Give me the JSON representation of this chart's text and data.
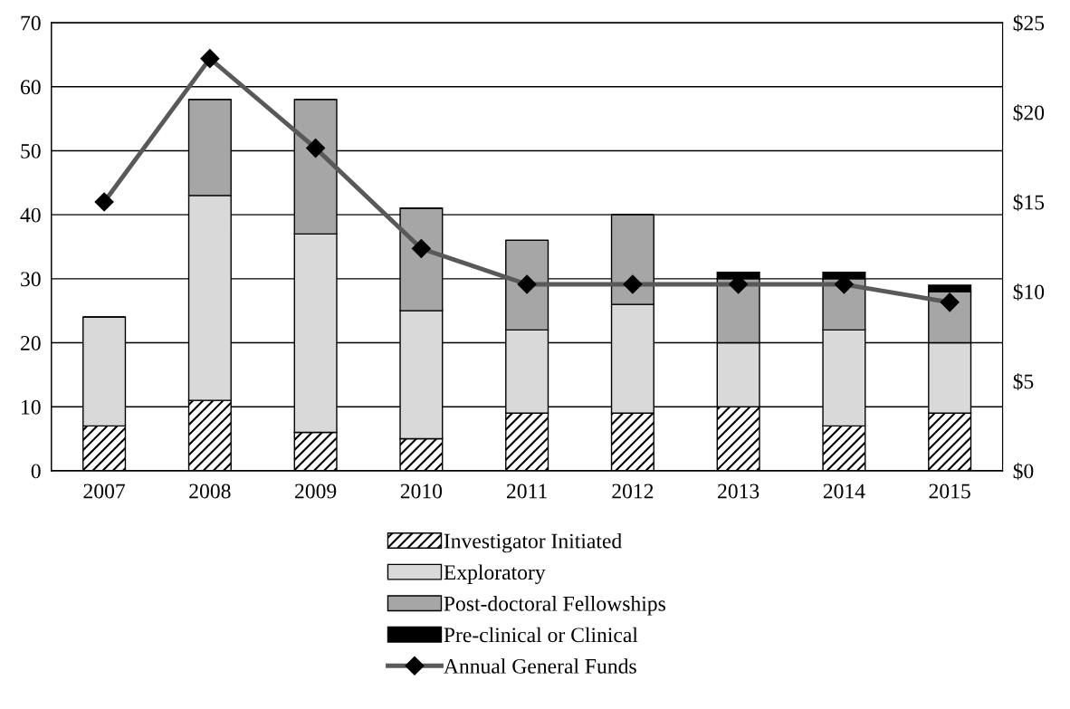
{
  "chart_data": {
    "type": "bar",
    "stacked": true,
    "categories": [
      "2007",
      "2008",
      "2009",
      "2010",
      "2011",
      "2012",
      "2013",
      "2014",
      "2015"
    ],
    "series": [
      {
        "name": "Investigator Initiated",
        "color": "#000000",
        "values": [
          7,
          11,
          6,
          5,
          9,
          9,
          10,
          7,
          9
        ]
      },
      {
        "name": "Exploratory",
        "color": "#d9d9d9",
        "values": [
          17,
          32,
          31,
          20,
          13,
          17,
          10,
          15,
          11
        ]
      },
      {
        "name": "Post-doctoral Fellowships",
        "color": "#a6a6a6",
        "values": [
          0,
          15,
          21,
          16,
          14,
          14,
          10,
          8,
          8
        ]
      },
      {
        "name": "Pre-clinical or Clinical",
        "color": "#000000",
        "values": [
          0,
          0,
          0,
          0,
          0,
          0,
          1,
          1,
          1
        ]
      },
      {
        "name": "Annual General Funds",
        "type": "line",
        "axis": "y2",
        "color": "#595959",
        "marker": "diamond",
        "values": [
          15,
          23,
          18,
          12.4,
          10.4,
          10.4,
          10.4,
          10.4,
          9.4
        ]
      }
    ],
    "ylim": [
      0,
      70
    ],
    "yticks": [
      0,
      10,
      20,
      30,
      40,
      50,
      60,
      70
    ],
    "y2lim": [
      0,
      25
    ],
    "y2ticks": [
      {
        "value": 0,
        "label": "$0"
      },
      {
        "value": 5,
        "label": "$5"
      },
      {
        "value": 10,
        "label": "$10"
      },
      {
        "value": 15,
        "label": "$15"
      },
      {
        "value": 20,
        "label": "$20"
      },
      {
        "value": 25,
        "label": "$25"
      }
    ],
    "grid": "y",
    "legend": "bottom"
  }
}
